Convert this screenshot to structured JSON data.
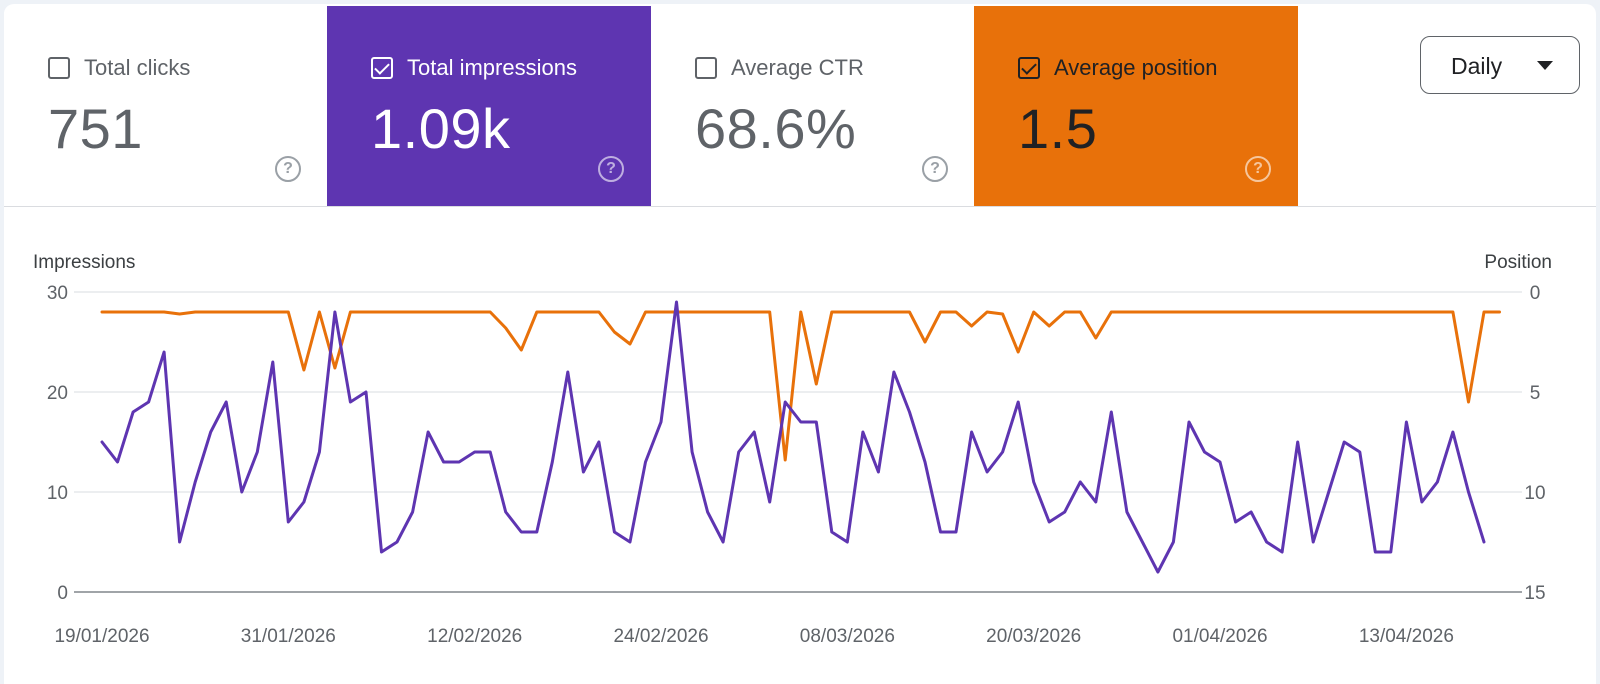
{
  "metrics": [
    {
      "label": "Total clicks",
      "value": "751",
      "checked": false,
      "bg": "#ffffff"
    },
    {
      "label": "Total impressions",
      "value": "1.09k",
      "checked": true,
      "bg": "#5e35b1"
    },
    {
      "label": "Average CTR",
      "value": "68.6%",
      "checked": false,
      "bg": "#ffffff"
    },
    {
      "label": "Average position",
      "value": "1.5",
      "checked": true,
      "bg": "#e8710a"
    }
  ],
  "help_icon": "?",
  "period": {
    "label": "Daily"
  },
  "chart_data": {
    "type": "line",
    "left_axis_label": "Impressions",
    "right_axis_label": "Position",
    "left_ylim": [
      0,
      30
    ],
    "left_ticks": [
      "0",
      "10",
      "20",
      "30"
    ],
    "right_ylim": [
      0,
      15
    ],
    "right_ticks": [
      "0",
      "5",
      "10",
      "15"
    ],
    "right_inverted": true,
    "x_tick_labels": [
      "19/01/2026",
      "31/01/2026",
      "12/02/2026",
      "24/02/2026",
      "08/03/2026",
      "20/03/2026",
      "01/04/2026",
      "13/04/2026"
    ],
    "x_start": "19/01/2026",
    "x_end": "18/04/2026",
    "series": [
      {
        "name": "Impressions",
        "axis": "left",
        "color": "#5e35b1",
        "values": [
          15,
          13,
          18,
          19,
          24,
          5,
          11,
          16,
          19,
          10,
          14,
          23,
          7,
          9,
          14,
          28,
          19,
          20,
          4,
          5,
          8,
          16,
          13,
          13,
          14,
          14,
          8,
          6,
          6,
          13,
          22,
          12,
          15,
          6,
          5,
          13,
          17,
          29,
          14,
          8,
          5,
          14,
          16,
          9,
          19,
          17,
          17,
          6,
          5,
          16,
          12,
          22,
          18,
          13,
          6,
          6,
          16,
          12,
          14,
          19,
          11,
          7,
          8,
          11,
          9,
          18,
          8,
          5,
          2,
          5,
          17,
          14,
          13,
          7,
          8,
          5,
          4,
          15,
          5,
          10,
          15,
          14,
          4,
          4,
          17,
          9,
          11,
          16,
          10,
          5
        ]
      },
      {
        "name": "Position",
        "axis": "right",
        "color": "#e8710a",
        "values": [
          1,
          1,
          1,
          1,
          1,
          1.1,
          1,
          1,
          1,
          1,
          1,
          1,
          1,
          3.9,
          1,
          3.8,
          1,
          1,
          1,
          1,
          1,
          1,
          1,
          1,
          1,
          1,
          1.8,
          2.9,
          1,
          1,
          1,
          1,
          1,
          2,
          2.6,
          1,
          1,
          1,
          1,
          1,
          1,
          1,
          1,
          1,
          8.4,
          1,
          4.6,
          1,
          1,
          1,
          1,
          1,
          1,
          2.5,
          1,
          1,
          1.7,
          1,
          1.1,
          3,
          1,
          1.7,
          1,
          1,
          2.3,
          1,
          1,
          1,
          1,
          1,
          1,
          1,
          1,
          1,
          1,
          1,
          1,
          1,
          1,
          1,
          1,
          1,
          1,
          1,
          1,
          1,
          1,
          1,
          5.5,
          1,
          1
        ]
      }
    ]
  }
}
